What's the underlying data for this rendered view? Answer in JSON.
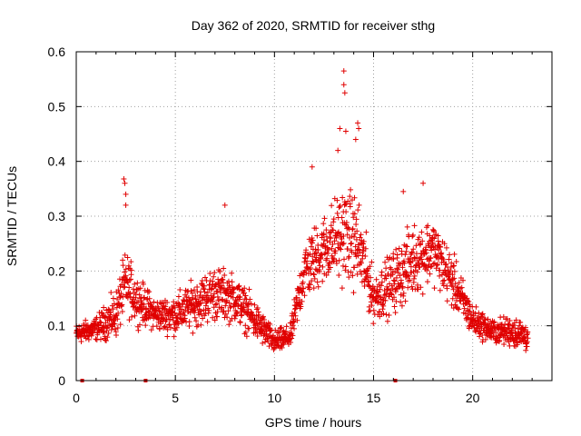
{
  "colors": {
    "series": "#e00000",
    "grid": "#a0a0a0",
    "frame": "#000000",
    "background": "#ffffff"
  },
  "chart_data": {
    "type": "scatter",
    "title": "Day 362 of 2020, SRMTID for receiver sthg",
    "xlabel": "GPS time / hours",
    "ylabel": "SRMTID / TECUs",
    "xlim": [
      0,
      24
    ],
    "ylim": [
      0,
      0.6
    ],
    "xticks": [
      0,
      5,
      10,
      15,
      20
    ],
    "yticks": [
      0,
      0.1,
      0.2,
      0.3,
      0.4,
      0.5,
      0.6
    ],
    "xtick_labels": [
      "0",
      "5",
      "10",
      "15",
      "20"
    ],
    "ytick_labels": [
      "0",
      "0.1",
      "0.2",
      "0.3",
      "0.4",
      "0.5",
      "0.6"
    ],
    "grid": true,
    "marker": "+",
    "series": [
      {
        "name": "SRMTID",
        "envelope": [
          {
            "x": 0.0,
            "center": 0.085,
            "spread": 0.025
          },
          {
            "x": 1.0,
            "center": 0.095,
            "spread": 0.03
          },
          {
            "x": 2.0,
            "center": 0.12,
            "spread": 0.06
          },
          {
            "x": 2.5,
            "center": 0.18,
            "spread": 0.08
          },
          {
            "x": 3.0,
            "center": 0.15,
            "spread": 0.06
          },
          {
            "x": 4.0,
            "center": 0.12,
            "spread": 0.04
          },
          {
            "x": 5.0,
            "center": 0.12,
            "spread": 0.05
          },
          {
            "x": 6.0,
            "center": 0.14,
            "spread": 0.06
          },
          {
            "x": 7.0,
            "center": 0.16,
            "spread": 0.07
          },
          {
            "x": 8.0,
            "center": 0.15,
            "spread": 0.06
          },
          {
            "x": 9.0,
            "center": 0.11,
            "spread": 0.05
          },
          {
            "x": 10.0,
            "center": 0.07,
            "spread": 0.03
          },
          {
            "x": 10.8,
            "center": 0.08,
            "spread": 0.03
          },
          {
            "x": 11.5,
            "center": 0.2,
            "spread": 0.08
          },
          {
            "x": 12.5,
            "center": 0.24,
            "spread": 0.09
          },
          {
            "x": 13.5,
            "center": 0.27,
            "spread": 0.12
          },
          {
            "x": 14.2,
            "center": 0.25,
            "spread": 0.12
          },
          {
            "x": 15.0,
            "center": 0.15,
            "spread": 0.06
          },
          {
            "x": 16.0,
            "center": 0.18,
            "spread": 0.08
          },
          {
            "x": 17.0,
            "center": 0.22,
            "spread": 0.09
          },
          {
            "x": 18.0,
            "center": 0.24,
            "spread": 0.08
          },
          {
            "x": 19.0,
            "center": 0.18,
            "spread": 0.07
          },
          {
            "x": 20.0,
            "center": 0.11,
            "spread": 0.04
          },
          {
            "x": 21.0,
            "center": 0.09,
            "spread": 0.03
          },
          {
            "x": 22.0,
            "center": 0.09,
            "spread": 0.04
          },
          {
            "x": 22.8,
            "center": 0.08,
            "spread": 0.04
          }
        ],
        "outliers": [
          {
            "x": 2.4,
            "y": 0.368
          },
          {
            "x": 2.45,
            "y": 0.36
          },
          {
            "x": 2.5,
            "y": 0.34
          },
          {
            "x": 2.5,
            "y": 0.32
          },
          {
            "x": 7.5,
            "y": 0.32
          },
          {
            "x": 13.5,
            "y": 0.565
          },
          {
            "x": 13.5,
            "y": 0.54
          },
          {
            "x": 13.55,
            "y": 0.525
          },
          {
            "x": 13.3,
            "y": 0.46
          },
          {
            "x": 13.6,
            "y": 0.455
          },
          {
            "x": 14.2,
            "y": 0.47
          },
          {
            "x": 14.25,
            "y": 0.46
          },
          {
            "x": 14.1,
            "y": 0.44
          },
          {
            "x": 13.2,
            "y": 0.42
          },
          {
            "x": 11.9,
            "y": 0.39
          },
          {
            "x": 16.5,
            "y": 0.345
          },
          {
            "x": 17.5,
            "y": 0.36
          }
        ],
        "axis_markers_x": [
          0.3,
          3.5,
          16.1
        ]
      }
    ]
  }
}
